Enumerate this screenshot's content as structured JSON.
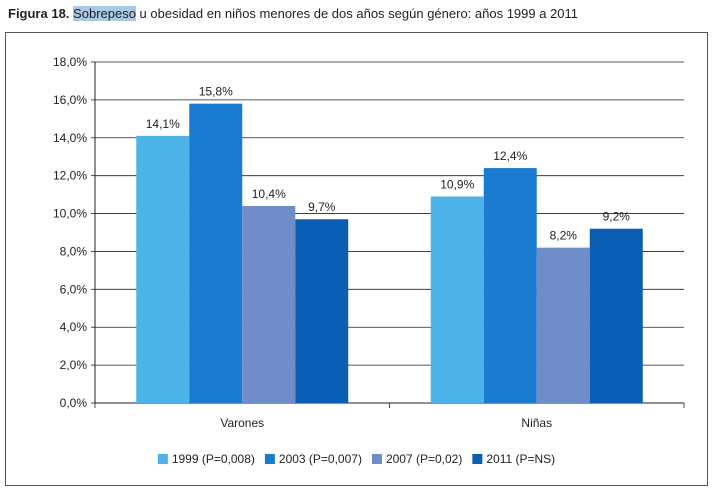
{
  "caption": {
    "figure_label": "Figura 18.",
    "highlighted_word": "Sobrepeso",
    "rest": " u obesidad en niños menores de dos años según género: años 1999 a 2011"
  },
  "chart_data": {
    "type": "bar",
    "categories": [
      "Varones",
      "Niñas"
    ],
    "series": [
      {
        "name": "1999 (P=0,008)",
        "color": "#4db3e8",
        "values": [
          14.1,
          10.9
        ],
        "labels": [
          "14,1%",
          "10,9%"
        ]
      },
      {
        "name": "2003 (P=0,007)",
        "color": "#1b7bd0",
        "values": [
          15.8,
          12.4
        ],
        "labels": [
          "15,8%",
          "12,4%"
        ]
      },
      {
        "name": "2007 (P=0,02)",
        "color": "#6f8dc8",
        "values": [
          10.4,
          8.2
        ],
        "labels": [
          "10,4%",
          "8,2%"
        ]
      },
      {
        "name": "2011 (P=NS)",
        "color": "#0a5fb4",
        "values": [
          9.7,
          9.2
        ],
        "labels": [
          "9,7%",
          "9,2%"
        ]
      }
    ],
    "ylim": [
      0,
      18
    ],
    "yticks": [
      0,
      2,
      4,
      6,
      8,
      10,
      12,
      14,
      16,
      18
    ],
    "ytick_labels": [
      "0,0%",
      "2,0%",
      "4,0%",
      "6,0%",
      "8,0%",
      "10,0%",
      "12,0%",
      "14,0%",
      "16,0%",
      "18,0%"
    ],
    "grid": true,
    "legend_position": "bottom"
  }
}
